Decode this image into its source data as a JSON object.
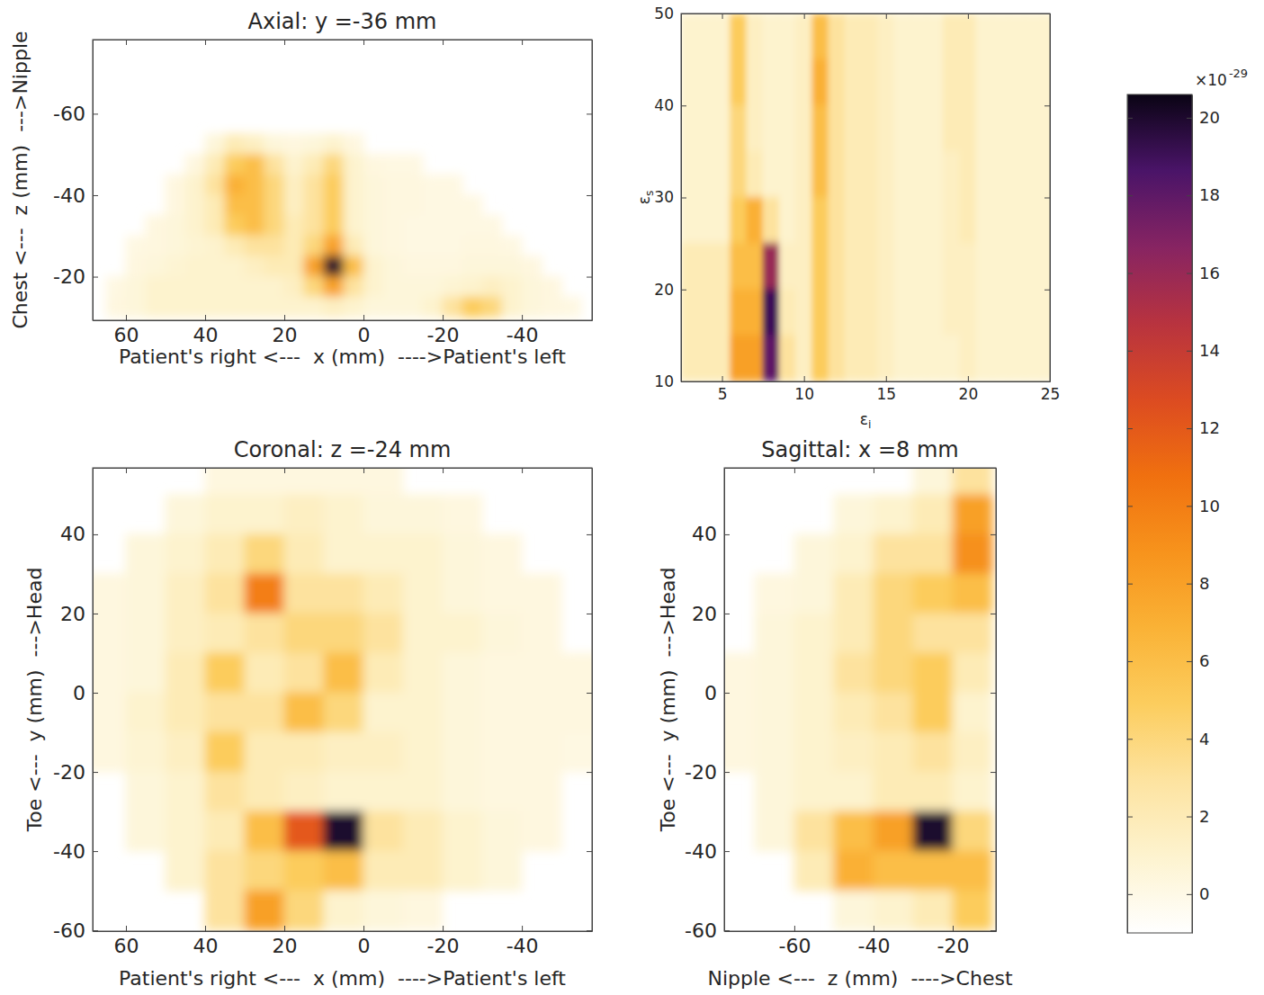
{
  "chart_data": [
    {
      "type": "heatmap",
      "title": "Axial: y =-36 mm",
      "x_label": "Patient's right <---  x (mm)  ---->Patient's left",
      "y_label": "Chest <---  z (mm)  --->Nipple",
      "xlim": [
        68.4,
        -57.7
      ],
      "ylim": [
        -9.3,
        -78.2
      ],
      "xticks": [
        60,
        40,
        20,
        0,
        -20,
        -40
      ],
      "yticks": [
        -60,
        -40,
        -20
      ],
      "x": [
        62.5,
        57.5,
        52.5,
        47.5,
        42.5,
        37.5,
        32.5,
        27.5,
        22.5,
        17.5,
        12.5,
        7.5,
        2.5,
        -2.5,
        -7.5,
        -12.5,
        -17.5,
        -22.5,
        -27.5,
        -32.5,
        -37.5,
        -42.5,
        -47.5,
        -52.5
      ],
      "y": [
        -52.5,
        -47.5,
        -42.5,
        -37.5,
        -32.5,
        -27.5,
        -22.5,
        -17.5,
        -12.5
      ],
      "z": [
        [
          null,
          null,
          null,
          null,
          null,
          0.5,
          2,
          1.5,
          0.5,
          0.3,
          0.5,
          1,
          0.3,
          null,
          null,
          null,
          null,
          null,
          null,
          null,
          null,
          null,
          null,
          null
        ],
        [
          null,
          null,
          null,
          null,
          0.3,
          2,
          5,
          6,
          3,
          1,
          2,
          4,
          1,
          0.3,
          0.2,
          0.2,
          null,
          null,
          null,
          null,
          null,
          null,
          null,
          null
        ],
        [
          null,
          null,
          null,
          0.3,
          1,
          3,
          7,
          6,
          4,
          1.5,
          3,
          5,
          1,
          0.5,
          0.3,
          0.3,
          0.2,
          0.2,
          null,
          null,
          null,
          null,
          null,
          null
        ],
        [
          null,
          null,
          null,
          0.3,
          1,
          2,
          6,
          6,
          4,
          1.5,
          3,
          5,
          1,
          0.5,
          0.3,
          0.3,
          0.2,
          0.2,
          0.2,
          null,
          null,
          null,
          null,
          null
        ],
        [
          null,
          null,
          0.3,
          0.5,
          1,
          2,
          5,
          6,
          4,
          2,
          3,
          5,
          1,
          0.5,
          0.3,
          0.2,
          0.2,
          0.2,
          0.2,
          0.2,
          null,
          null,
          null,
          null
        ],
        [
          null,
          0.2,
          0.3,
          0.5,
          0.8,
          1,
          2,
          3,
          3,
          2,
          4,
          8,
          2,
          0.5,
          0.3,
          0.2,
          0.2,
          0.2,
          0.3,
          0.3,
          0.2,
          null,
          null,
          null
        ],
        [
          null,
          0.3,
          0.5,
          0.8,
          1,
          1,
          1,
          1.5,
          2,
          2,
          8,
          20,
          6,
          1,
          0.5,
          0.3,
          0.3,
          0.3,
          0.5,
          0.5,
          0.5,
          0.3,
          null,
          null
        ],
        [
          0.2,
          0.5,
          1,
          1,
          1,
          1,
          1,
          1,
          1,
          1.5,
          4,
          8,
          3,
          1,
          0.5,
          0.5,
          0.5,
          0.8,
          1,
          1.5,
          1,
          0.5,
          0.3,
          null
        ],
        [
          0.3,
          0.5,
          1,
          1,
          1,
          1,
          1,
          1,
          1,
          1,
          1,
          1.5,
          1,
          0.5,
          0.5,
          0.5,
          1,
          3,
          5,
          4,
          1,
          0.5,
          0.3,
          0.2
        ]
      ]
    },
    {
      "type": "heatmap",
      "x_label": "εi",
      "y_label": "εs",
      "xlim": [
        2.5,
        25
      ],
      "ylim": [
        10,
        50
      ],
      "xticks": [
        5,
        10,
        15,
        20,
        25
      ],
      "yticks": [
        10,
        20,
        30,
        40,
        50
      ],
      "x": [
        3,
        4,
        5,
        6,
        7,
        8,
        9,
        10,
        11,
        12,
        13,
        14,
        15,
        16,
        17,
        18,
        19,
        20,
        21,
        22,
        23,
        24,
        25
      ],
      "y": [
        47.5,
        42.5,
        37.5,
        32.5,
        27.5,
        22.5,
        17.5,
        12.5
      ],
      "z": [
        [
          1,
          1,
          1,
          5,
          1.5,
          1,
          1,
          1.5,
          6,
          3,
          2,
          2,
          1.5,
          1,
          1,
          1,
          2,
          2,
          1,
          1,
          1,
          1,
          1
        ],
        [
          1,
          1,
          1,
          5,
          1.5,
          1,
          1,
          1.5,
          7,
          3,
          2,
          2,
          1.5,
          1,
          1,
          1,
          2,
          2,
          1,
          1,
          1,
          1,
          1
        ],
        [
          1,
          1,
          1,
          4,
          1.5,
          1,
          1,
          1.5,
          6,
          3,
          2,
          2,
          1.5,
          1,
          1,
          1,
          2,
          2,
          1,
          1,
          1,
          1,
          1
        ],
        [
          1,
          1,
          1,
          4,
          2,
          1,
          1,
          1.5,
          6,
          3,
          2,
          2,
          1.5,
          1,
          1,
          1,
          1.5,
          2,
          1,
          1,
          1,
          1,
          1
        ],
        [
          1,
          1,
          1,
          5,
          7,
          3,
          1,
          1.5,
          5,
          3,
          2,
          2,
          1.5,
          1,
          1,
          1,
          1.5,
          2,
          1,
          1,
          1,
          1,
          1
        ],
        [
          2,
          2,
          2,
          6,
          6,
          16,
          1.5,
          1.5,
          5,
          3,
          2,
          2,
          1.5,
          1,
          1,
          1,
          1.5,
          1.5,
          1,
          1,
          1,
          1,
          1
        ],
        [
          2,
          2,
          2,
          7,
          7,
          19,
          2,
          1.5,
          5,
          3,
          2,
          2,
          1.5,
          1,
          1,
          1,
          1.5,
          1.5,
          1,
          1,
          1,
          1,
          1
        ],
        [
          2,
          2,
          2,
          8,
          8,
          18,
          3,
          1.5,
          5,
          3,
          2,
          2,
          1.5,
          1,
          1,
          1,
          1,
          1.5,
          1,
          1,
          1,
          1,
          1
        ]
      ]
    },
    {
      "type": "heatmap",
      "title": "Coronal: z =-24 mm",
      "x_label": "Patient's right <---  x (mm)  ---->Patient's left",
      "y_label": "Toe <---  y (mm)  --->Head",
      "xlim": [
        68.4,
        -57.7
      ],
      "ylim": [
        -60.2,
        56.8
      ],
      "xticks": [
        60,
        40,
        20,
        0,
        -20,
        -40
      ],
      "yticks": [
        40,
        20,
        0,
        -20,
        -40,
        -60
      ],
      "x": [
        65,
        55,
        45,
        35,
        25,
        15,
        5,
        -5,
        -15,
        -25,
        -35,
        -45,
        -55
      ],
      "y": [
        55,
        45,
        35,
        25,
        15,
        5,
        -5,
        -15,
        -25,
        -35,
        -45,
        -55
      ],
      "z": [
        [
          null,
          null,
          null,
          0.3,
          0.3,
          0.3,
          0.3,
          0.3,
          null,
          null,
          null,
          null,
          null
        ],
        [
          null,
          null,
          0.5,
          1,
          1,
          1.5,
          1,
          0.5,
          0.5,
          0.3,
          null,
          null,
          null
        ],
        [
          null,
          0.5,
          1,
          2,
          4,
          2,
          1,
          1,
          1,
          0.5,
          0.3,
          null,
          null
        ],
        [
          0.3,
          0.5,
          1.5,
          3,
          10,
          3,
          3,
          2,
          1,
          0.5,
          0.3,
          0.3,
          null
        ],
        [
          0.3,
          0.5,
          1.5,
          2,
          3,
          4,
          4,
          3,
          1,
          1,
          0.5,
          0.3,
          null
        ],
        [
          0.3,
          0.5,
          2,
          5,
          2,
          3,
          6,
          2,
          1,
          0.5,
          0.3,
          0.3,
          0.3
        ],
        [
          0.3,
          1,
          2,
          3,
          3,
          6,
          4,
          1,
          1,
          0.5,
          0.3,
          0.3,
          0.3
        ],
        [
          0.3,
          0.8,
          1.5,
          5,
          2,
          2,
          1.5,
          1.5,
          1,
          0.5,
          0.3,
          0.3,
          0.2
        ],
        [
          null,
          0.5,
          1,
          3,
          2,
          1.5,
          1,
          1,
          1,
          0.5,
          0.3,
          0.3,
          null
        ],
        [
          null,
          0.5,
          1,
          2,
          6,
          12,
          20,
          3,
          2,
          1,
          0.5,
          0.3,
          null
        ],
        [
          null,
          null,
          1,
          3,
          4,
          5,
          6,
          2,
          2,
          1,
          0.5,
          null,
          null
        ],
        [
          null,
          null,
          null,
          3,
          8,
          4,
          1,
          0.5,
          0.3,
          null,
          null,
          null,
          null
        ]
      ]
    },
    {
      "type": "heatmap",
      "title": "Sagittal: x =8 mm",
      "x_label": "Nipple <---  z (mm)  ---->Chest",
      "y_label": "Toe <---  y (mm)  --->Head",
      "xlim": [
        -77.7,
        -9.1
      ],
      "ylim": [
        -60.2,
        56.8
      ],
      "xticks": [
        -60,
        -40,
        -20
      ],
      "yticks": [
        40,
        20,
        0,
        -20,
        -40,
        -60
      ],
      "x": [
        -75,
        -65,
        -55,
        -45,
        -35,
        -25,
        -15
      ],
      "y": [
        55,
        45,
        35,
        25,
        15,
        5,
        -5,
        -15,
        -25,
        -35,
        -45,
        -55
      ],
      "z": [
        [
          null,
          null,
          null,
          null,
          null,
          0.5,
          3
        ],
        [
          null,
          null,
          null,
          0.5,
          1,
          2,
          8
        ],
        [
          null,
          null,
          0.5,
          1,
          3,
          3,
          9
        ],
        [
          null,
          0.3,
          0.5,
          2,
          4,
          5,
          6
        ],
        [
          null,
          0.5,
          1,
          2,
          4,
          3,
          3
        ],
        [
          0.3,
          0.5,
          1,
          3,
          4,
          5,
          2
        ],
        [
          0.3,
          0.5,
          1,
          2,
          3,
          5,
          1
        ],
        [
          0.3,
          0.5,
          1,
          1.5,
          2,
          3,
          1.5
        ],
        [
          null,
          0.5,
          1,
          1,
          2,
          2,
          1
        ],
        [
          null,
          0.5,
          3,
          6,
          8,
          20,
          4
        ],
        [
          null,
          null,
          2,
          7,
          6,
          6,
          6
        ],
        [
          null,
          null,
          null,
          0.5,
          1,
          2,
          5
        ]
      ]
    },
    {
      "type": "colorbar",
      "range": [
        -1,
        20.6
      ],
      "ticks": [
        0,
        2,
        4,
        6,
        8,
        10,
        12,
        14,
        16,
        18,
        20
      ],
      "scale_label": "×10",
      "scale_exponent": "-29"
    }
  ]
}
